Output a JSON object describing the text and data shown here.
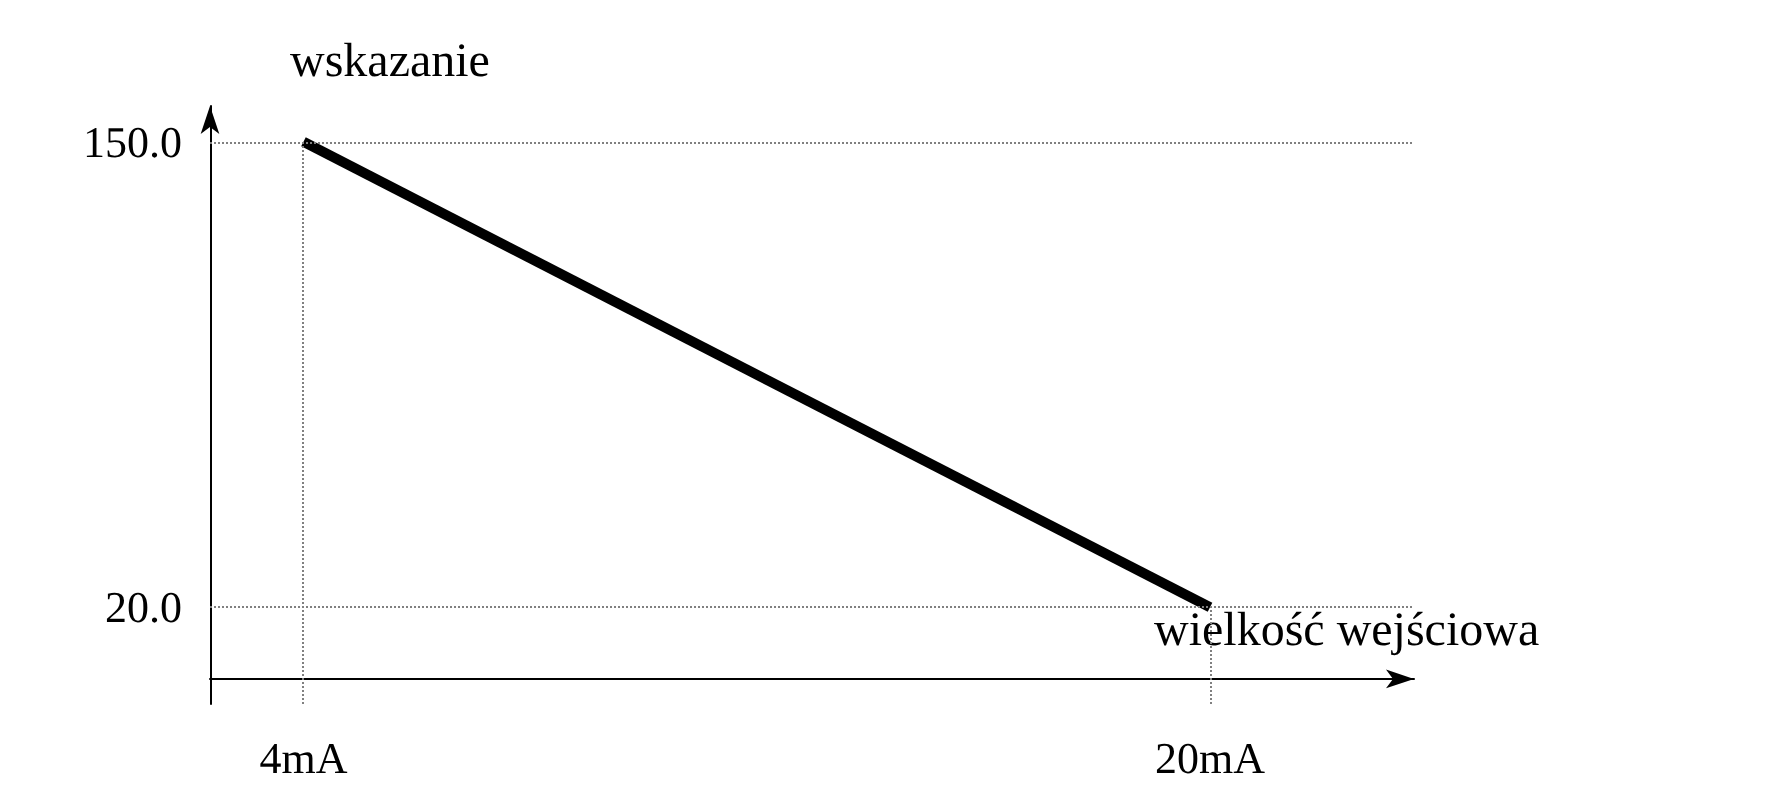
{
  "chart_data": {
    "type": "line",
    "xlabel": "wielkość wejściowa",
    "ylabel": "wskazanie",
    "x": [
      4,
      20
    ],
    "series": [
      {
        "color": "#000000",
        "values": [
          150,
          20
        ]
      }
    ],
    "xlim": [
      2.35,
      23.6
    ],
    "ylim": [
      -7,
      160
    ],
    "xticks": [
      {
        "value": 4,
        "label": "4mA"
      },
      {
        "value": 20,
        "label": "20mA"
      }
    ],
    "yticks": [
      {
        "value": 150,
        "label": "150.0"
      },
      {
        "value": 20,
        "label": "20.0"
      }
    ],
    "ref_lines": [
      {
        "axis": "y",
        "value": 150,
        "color": "#808080",
        "line_style": "dotted"
      },
      {
        "axis": "y",
        "value": 20,
        "color": "#808080",
        "line_style": "dotted"
      },
      {
        "axis": "x",
        "value": 4,
        "color": "#808080",
        "line_style": "dotted"
      },
      {
        "axis": "x",
        "value": 20,
        "color": "#808080",
        "line_style": "dotted"
      }
    ],
    "marker": "none",
    "line_style": "solid",
    "grid": false
  }
}
